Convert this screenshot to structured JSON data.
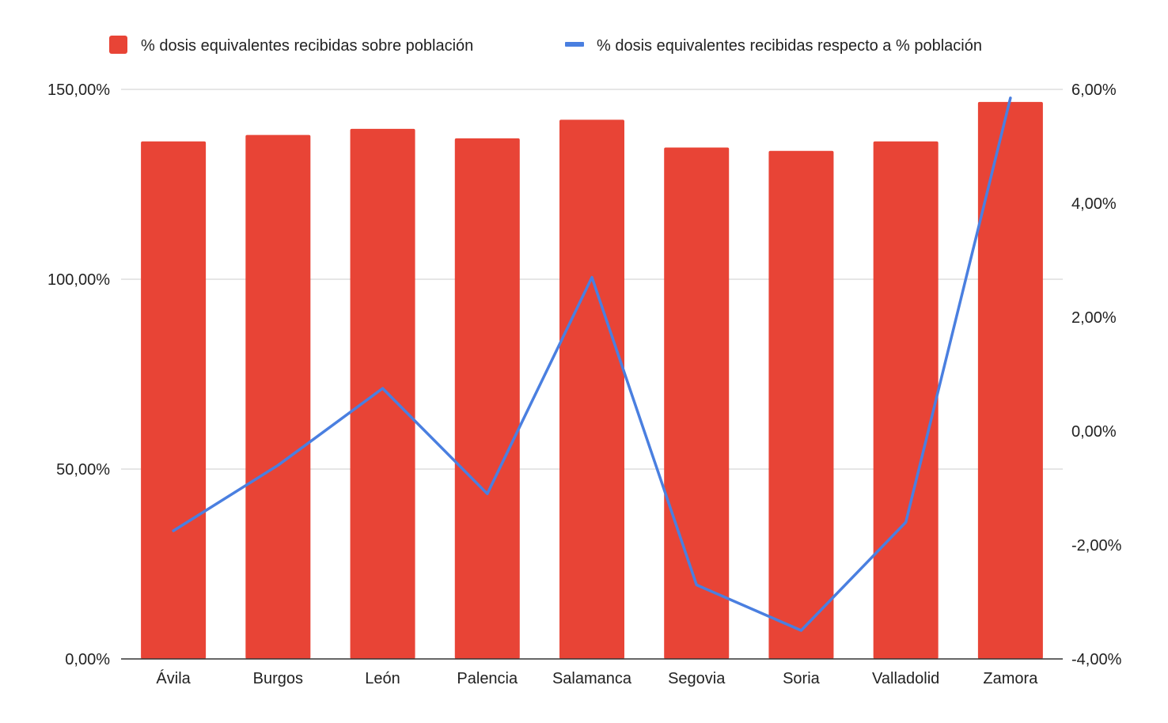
{
  "chart_data": {
    "type": "bar",
    "title": "",
    "xlabel": "",
    "ylabel": "",
    "categories": [
      "Ávila",
      "Burgos",
      "León",
      "Palencia",
      "Salamanca",
      "Segovia",
      "Soria",
      "Valladolid",
      "Zamora"
    ],
    "series": [
      {
        "name": "% dosis equivalentes recibidas sobre población",
        "type": "bar",
        "axis": "left",
        "color": "#E84436",
        "values": [
          136.3,
          138.0,
          139.6,
          137.1,
          142.0,
          134.7,
          133.8,
          136.3,
          146.7
        ]
      },
      {
        "name": "% dosis equivalentes recibidas respecto a % población",
        "type": "line",
        "axis": "right",
        "color": "#4A7FE0",
        "values": [
          -1.75,
          -0.6,
          0.75,
          -1.1,
          2.7,
          -2.7,
          -3.5,
          -1.6,
          5.85
        ]
      }
    ],
    "y_left": {
      "ylim": [
        0,
        150
      ],
      "ticks": [
        0,
        50,
        100,
        150
      ],
      "tick_labels": [
        "0,00%",
        "50,00%",
        "100,00%",
        "150,00%"
      ]
    },
    "y_right": {
      "ylim": [
        -4,
        6
      ],
      "ticks": [
        -4,
        -2,
        0,
        2,
        4,
        6
      ],
      "tick_labels": [
        "-4,00%",
        "-2,00%",
        "0,00%",
        "2,00%",
        "4,00%",
        "6,00%"
      ]
    },
    "grid": true,
    "legend_position": "top"
  }
}
